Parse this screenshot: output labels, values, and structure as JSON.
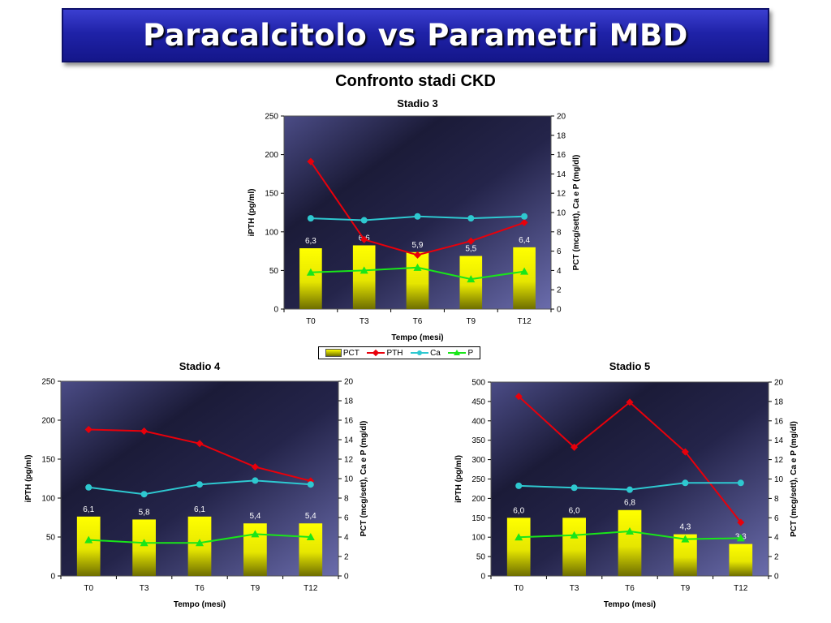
{
  "slide": {
    "banner_title": "Paracalcitolo vs Parametri MBD",
    "main_title": "Confronto stadi CKD"
  },
  "legend": {
    "items": [
      "PCT",
      "PTH",
      "Ca",
      "P"
    ]
  },
  "colors": {
    "PCT": "#ffff00",
    "PTH": "#e8000b",
    "Ca": "#2ec8d0",
    "P": "#19e619"
  },
  "chart_data": [
    {
      "type": "bar",
      "title": "Stadio 3",
      "categories": [
        "T0",
        "T3",
        "T6",
        "T9",
        "T12"
      ],
      "xlabel": "Tempo (mesi)",
      "ylabel": "iPTH (pg/ml)",
      "y2label": "PCT (mcg/sett), Ca e P (mg/dl)",
      "ylim": [
        0,
        250
      ],
      "yticks": [
        0,
        50,
        100,
        150,
        200,
        250
      ],
      "y2lim": [
        0,
        20
      ],
      "y2ticks": [
        0,
        2,
        4,
        6,
        8,
        10,
        12,
        14,
        16,
        18,
        20
      ],
      "series": [
        {
          "name": "PCT",
          "axis": "right",
          "kind": "bar",
          "values": [
            6.3,
            6.6,
            5.9,
            5.5,
            6.4
          ],
          "labels": [
            "6,3",
            "6,6",
            "5,9",
            "5,5",
            "6,4"
          ]
        },
        {
          "name": "PTH",
          "axis": "left",
          "kind": "line",
          "values": [
            191,
            90,
            70,
            88,
            112
          ]
        },
        {
          "name": "Ca",
          "axis": "right",
          "kind": "line",
          "values": [
            9.4,
            9.2,
            9.6,
            9.4,
            9.6
          ]
        },
        {
          "name": "P",
          "axis": "right",
          "kind": "line",
          "values": [
            3.8,
            4.0,
            4.3,
            3.1,
            3.9
          ]
        }
      ],
      "legend": "bottom"
    },
    {
      "type": "bar",
      "title": "Stadio 4",
      "categories": [
        "T0",
        "T3",
        "T6",
        "T9",
        "T12"
      ],
      "xlabel": "Tempo (mesi)",
      "ylabel": "iPTH (pg/ml)",
      "y2label": "PCT (mcg/sett), Ca e P (mg/dl)",
      "ylim": [
        0,
        250
      ],
      "yticks": [
        0,
        50,
        100,
        150,
        200,
        250
      ],
      "y2lim": [
        0,
        20
      ],
      "y2ticks": [
        0,
        2,
        4,
        6,
        8,
        10,
        12,
        14,
        16,
        18,
        20
      ],
      "series": [
        {
          "name": "PCT",
          "axis": "right",
          "kind": "bar",
          "values": [
            6.1,
            5.8,
            6.1,
            5.4,
            5.4
          ],
          "labels": [
            "6,1",
            "5,8",
            "6,1",
            "5,4",
            "5,4"
          ]
        },
        {
          "name": "PTH",
          "axis": "left",
          "kind": "line",
          "values": [
            188,
            186,
            170,
            140,
            122
          ]
        },
        {
          "name": "Ca",
          "axis": "right",
          "kind": "line",
          "values": [
            9.1,
            8.4,
            9.4,
            9.8,
            9.4
          ]
        },
        {
          "name": "P",
          "axis": "right",
          "kind": "line",
          "values": [
            3.7,
            3.4,
            3.4,
            4.3,
            4.0
          ]
        }
      ]
    },
    {
      "type": "bar",
      "title": "Stadio 5",
      "categories": [
        "T0",
        "T3",
        "T6",
        "T9",
        "T12"
      ],
      "xlabel": "Tempo (mesi)",
      "ylabel": "iPTH (pg/ml)",
      "y2label": "PCT (mcg/sett), Ca e P (mg/dl)",
      "ylim": [
        0,
        500
      ],
      "yticks": [
        0,
        50,
        100,
        150,
        200,
        250,
        300,
        350,
        400,
        450,
        500
      ],
      "y2lim": [
        0,
        20
      ],
      "y2ticks": [
        0,
        2,
        4,
        6,
        8,
        10,
        12,
        14,
        16,
        18,
        20
      ],
      "series": [
        {
          "name": "PCT",
          "axis": "right",
          "kind": "bar",
          "values": [
            6.0,
            6.0,
            6.8,
            4.3,
            3.3
          ],
          "labels": [
            "6,0",
            "6,0",
            "6,8",
            "4,3",
            "3,3"
          ]
        },
        {
          "name": "PTH",
          "axis": "left",
          "kind": "line",
          "values": [
            463,
            332,
            448,
            320,
            138
          ]
        },
        {
          "name": "Ca",
          "axis": "right",
          "kind": "line",
          "values": [
            9.3,
            9.1,
            8.9,
            9.6,
            9.6
          ]
        },
        {
          "name": "P",
          "axis": "right",
          "kind": "line",
          "values": [
            4.0,
            4.2,
            4.6,
            3.8,
            3.9
          ]
        }
      ]
    }
  ]
}
